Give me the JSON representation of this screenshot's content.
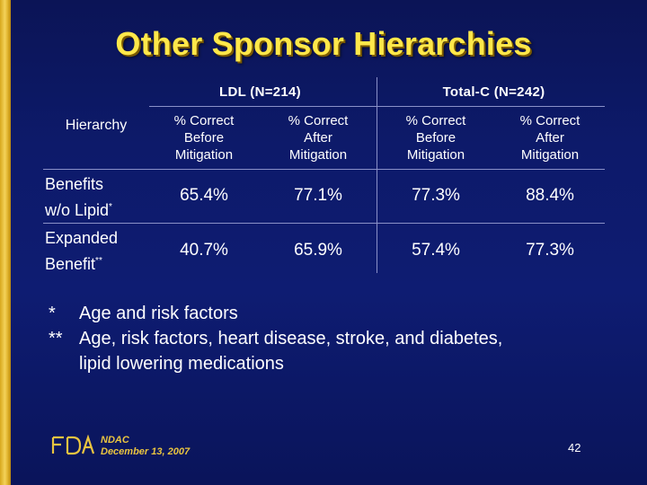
{
  "slide": {
    "title": "Other Sponsor Hierarchies",
    "table": {
      "hierarchy_header": "Hierarchy",
      "groups": [
        {
          "label": "LDL (N=214)"
        },
        {
          "label": "Total-C (N=242)"
        }
      ],
      "subheaders": [
        {
          "line1": "% Correct",
          "line2": "Before",
          "line3": "Mitigation"
        },
        {
          "line1": "% Correct",
          "line2": "After",
          "line3": "Mitigation"
        },
        {
          "line1": "% Correct",
          "line2": "Before",
          "line3": "Mitigation"
        },
        {
          "line1": "% Correct",
          "line2": "After",
          "line3": "Mitigation"
        }
      ],
      "rows": [
        {
          "label_line1": "Benefits",
          "label_line2": "w/o Lipid",
          "label_mark": "*",
          "values": [
            "65.4%",
            "77.1%",
            "77.3%",
            "88.4%"
          ]
        },
        {
          "label_line1": "Expanded",
          "label_line2": "Benefit",
          "label_mark": "**",
          "values": [
            "40.7%",
            "65.9%",
            "57.4%",
            "77.3%"
          ]
        }
      ]
    },
    "footnotes": [
      {
        "mark": "*",
        "text": "Age and risk factors"
      },
      {
        "mark": "**",
        "text": "Age, risk factors, heart disease, stroke, and diabetes,",
        "continuation": "lipid lowering medications"
      }
    ],
    "footer": {
      "logo_text": "FDA",
      "line1": "NDAC",
      "line2": "December 13, 2007",
      "page_number": "42"
    },
    "colors": {
      "background": "#0d1a6a",
      "title": "#ffe84a",
      "accent_bar": "#e2b52e",
      "text": "#ffffff"
    }
  }
}
